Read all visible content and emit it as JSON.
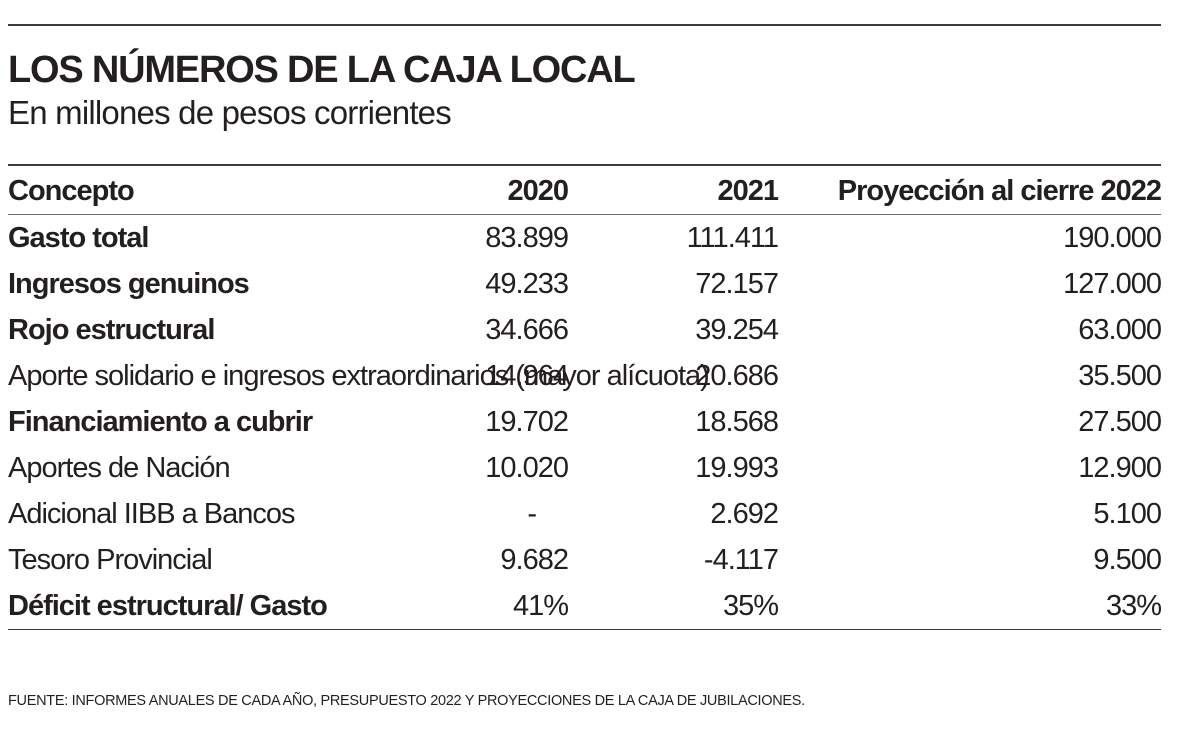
{
  "title": "LOS NÚMEROS DE LA CAJA LOCAL",
  "subtitle": "En millones de pesos corrientes",
  "table": {
    "headers": [
      "Concepto",
      "2020",
      "2021",
      "Proyección al cierre 2022"
    ],
    "rows": [
      {
        "concept": "Gasto total",
        "v2020": "83.899",
        "v2021": "111.411",
        "v2022": "190.000"
      },
      {
        "concept": "Ingresos genuinos",
        "v2020": "49.233",
        "v2021": "72.157",
        "v2022": "127.000"
      },
      {
        "concept": "Rojo estructural",
        "v2020": "34.666",
        "v2021": "39.254",
        "v2022": "63.000"
      },
      {
        "concept": "Aporte solidario e ingresos extraordinarios (mayor alícuota)",
        "v2020": "14.964",
        "v2021": "20.686",
        "v2022": "35.500"
      },
      {
        "concept": "Financiamiento a cubrir",
        "v2020": "19.702",
        "v2021": "18.568",
        "v2022": "27.500"
      },
      {
        "concept": "Aportes de Nación",
        "v2020": "10.020",
        "v2021": "19.993",
        "v2022": "12.900"
      },
      {
        "concept": "Adicional IIBB a Bancos",
        "v2020": "-",
        "v2021": "2.692",
        "v2022": "5.100"
      },
      {
        "concept": "Tesoro Provincial",
        "v2020": "9.682",
        "v2021": "-4.117",
        "v2022": "9.500"
      },
      {
        "concept": "Déficit estructural/ Gasto",
        "v2020": "41%",
        "v2021": "35%",
        "v2022": "33%"
      }
    ]
  },
  "source": "FUENTE: INFORMES ANUALES DE CADA AÑO, PRESUPUESTO 2022 Y PROYECCIONES DE LA CAJA DE JUBILACIONES."
}
